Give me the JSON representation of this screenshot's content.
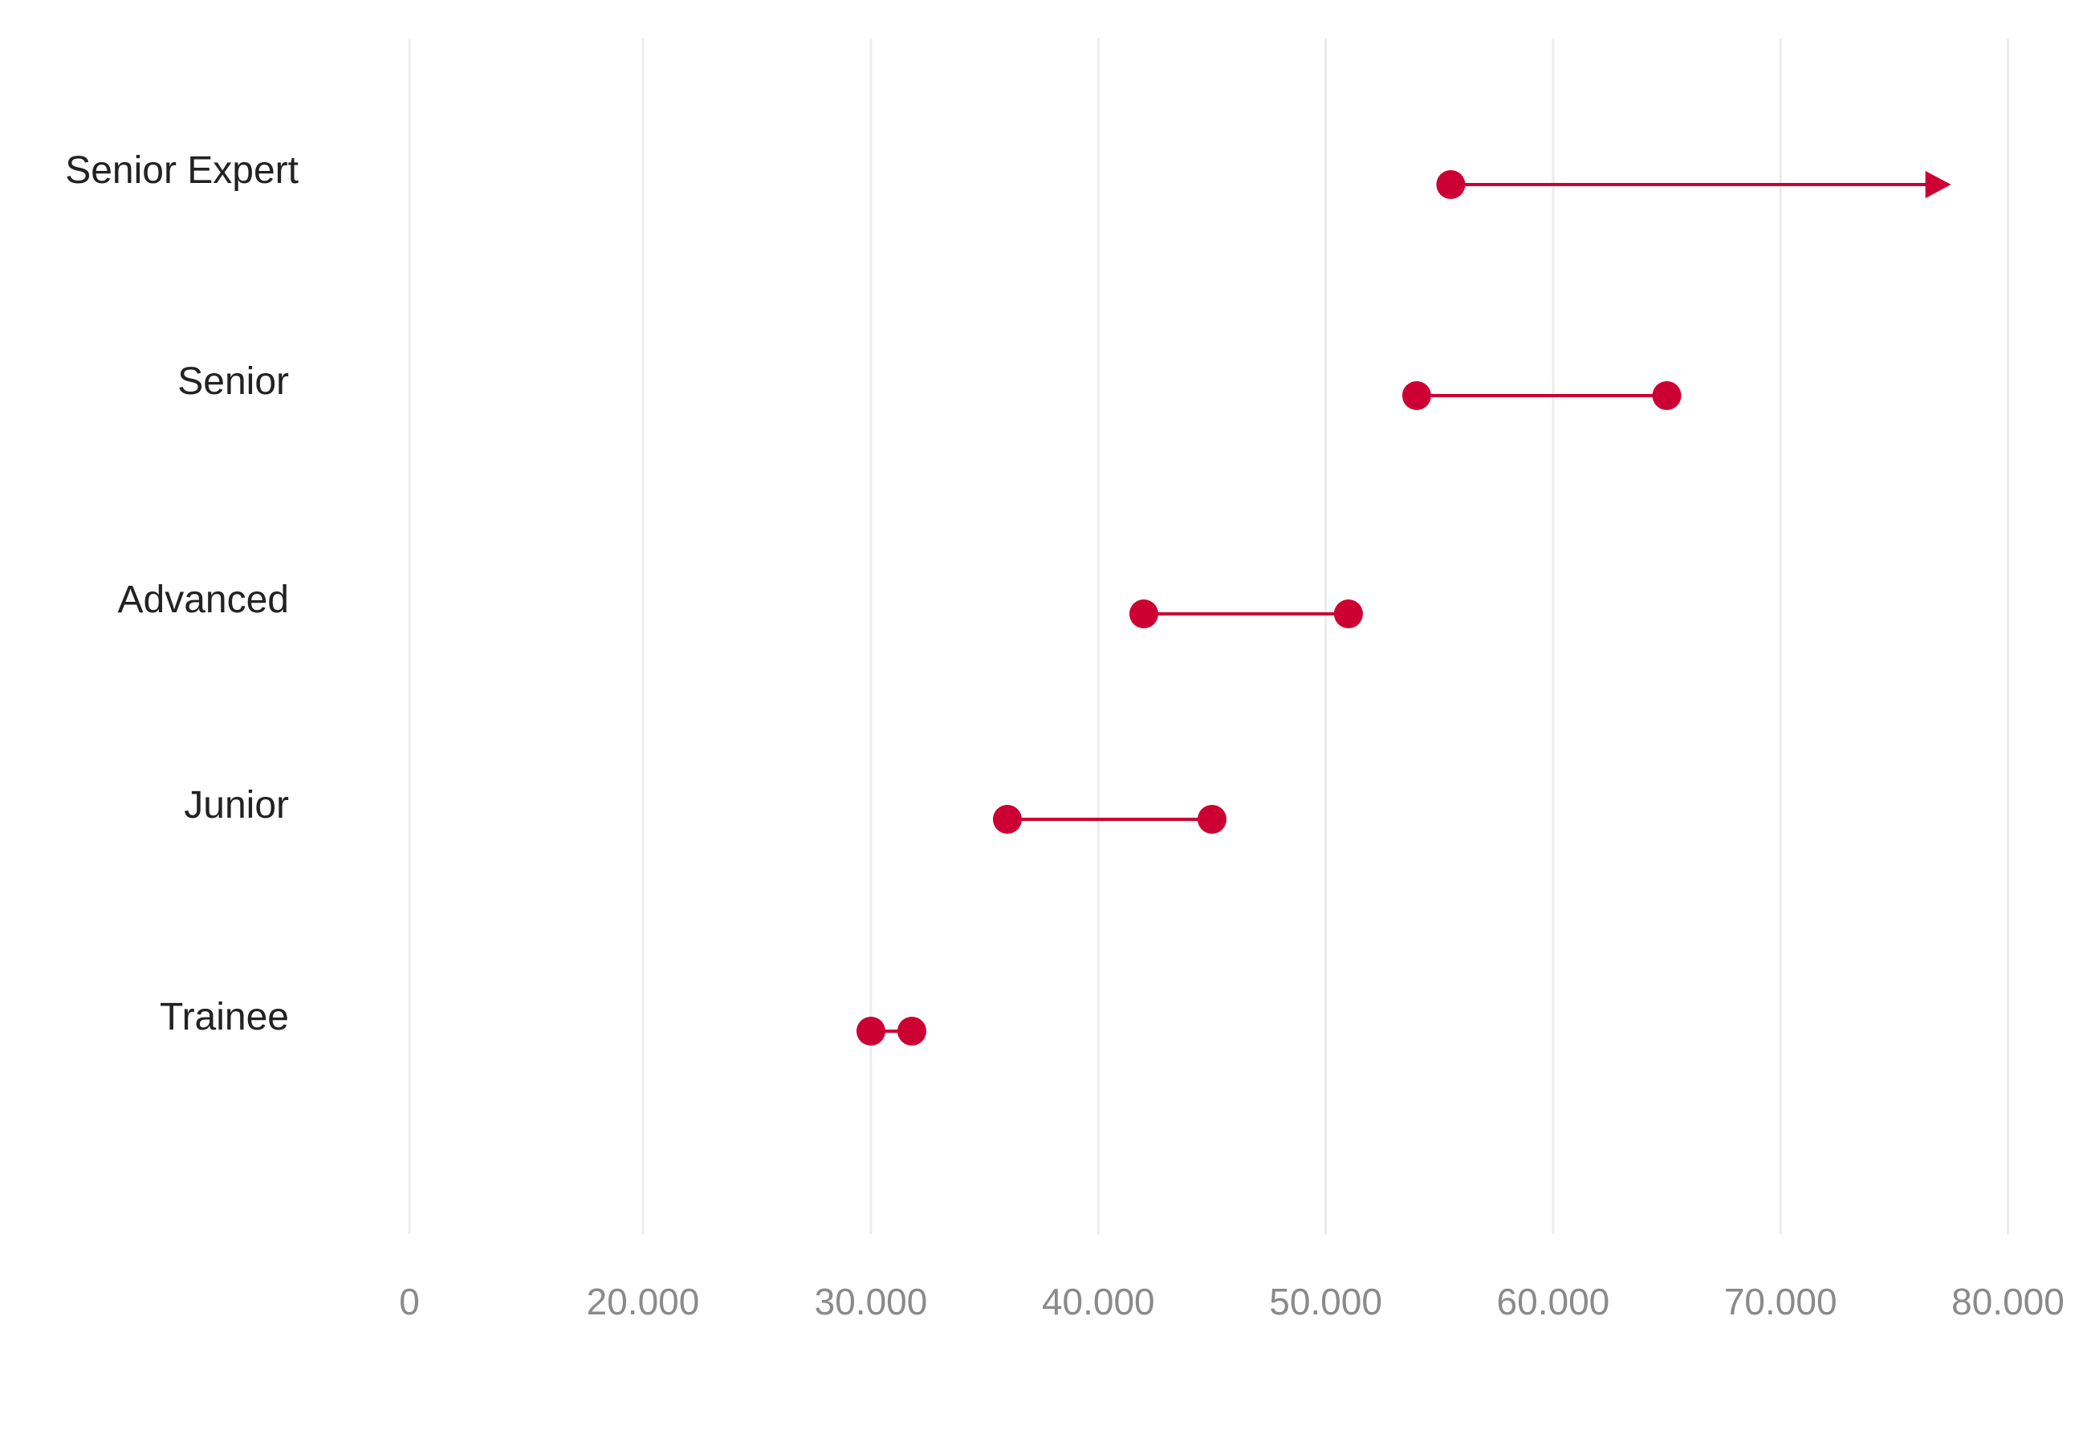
{
  "chart_data": {
    "type": "dumbbell",
    "title": "",
    "xlabel": "",
    "ylabel": "",
    "axis_break": "the segment from 0 to 20.000 is compressed",
    "xticks": [
      {
        "value": 0,
        "label": "0"
      },
      {
        "value": 20000,
        "label": "20.000"
      },
      {
        "value": 30000,
        "label": "30.000"
      },
      {
        "value": 40000,
        "label": "40.000"
      },
      {
        "value": 50000,
        "label": "50.000"
      },
      {
        "value": 60000,
        "label": "60.000"
      },
      {
        "value": 70000,
        "label": "70.000"
      },
      {
        "value": 80000,
        "label": "80.000"
      }
    ],
    "grid": "vertical",
    "color": "#cc0033",
    "rows": [
      {
        "category": "Senior Expert",
        "min": 55500,
        "max": 77500,
        "open_ended": true
      },
      {
        "category": "Senior",
        "min": 54000,
        "max": 65000,
        "open_ended": false
      },
      {
        "category": "Advanced",
        "min": 42000,
        "max": 51000,
        "open_ended": false
      },
      {
        "category": "Junior",
        "min": 36000,
        "max": 45000,
        "open_ended": false
      },
      {
        "category": "Trainee",
        "min": 30000,
        "max": 31800,
        "open_ended": false
      }
    ]
  }
}
